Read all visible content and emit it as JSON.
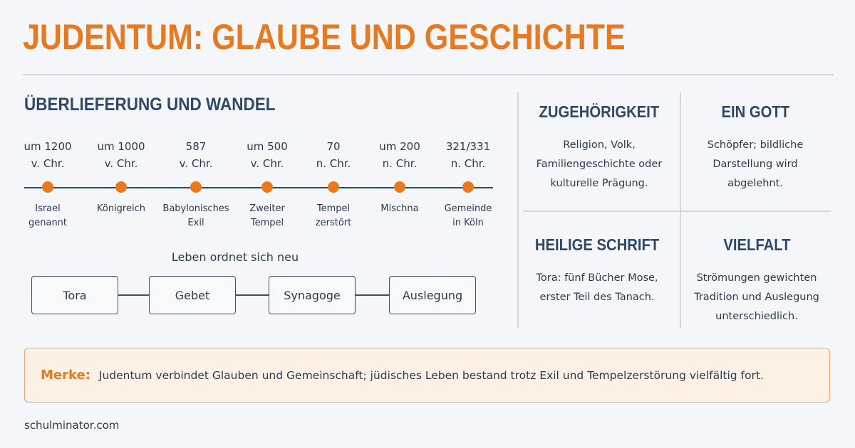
{
  "title": "JUDENTUM: GLAUBE UND GESCHICHTE",
  "timeline": {
    "heading": "ÜBERLIEFERUNG UND WANDEL",
    "events": [
      {
        "date": "um 1200\nv. Chr.",
        "label": "Israel\ngenannt"
      },
      {
        "date": "um 1000\nv. Chr.",
        "label": "Königreich"
      },
      {
        "date": "587\nv. Chr.",
        "label": "Babylonisches\nExil"
      },
      {
        "date": "um 500\nv. Chr.",
        "label": "Zweiter\nTempel"
      },
      {
        "date": "70\nn. Chr.",
        "label": "Tempel\nzerstört"
      },
      {
        "date": "um 200\nn. Chr.",
        "label": "Mischna"
      },
      {
        "date": "321/331\nn. Chr.",
        "label": "Gemeinde\nin Köln"
      }
    ],
    "accent_color": "#e8791f",
    "line_color": "#2f4868"
  },
  "flow": {
    "heading": "Leben ordnet sich neu",
    "steps": [
      "Tora",
      "Gebet",
      "Synagoge",
      "Auslegung"
    ]
  },
  "cards": [
    {
      "title": "ZUGEHÖRIGKEIT",
      "text": "Religion, Volk, Familiengeschichte oder kulturelle Prägung."
    },
    {
      "title": "EIN GOTT",
      "text": "Schöpfer; bildliche Darstellung wird abgelehnt."
    },
    {
      "title": "HEILIGE SCHRIFT",
      "text": "Tora: fünf Bücher Mose, erster Teil des Tanach."
    },
    {
      "title": "VIELFALT",
      "text": "Strömungen gewichten Tradition und Auslegung unterschiedlich."
    }
  ],
  "merke": {
    "label": "Merke:",
    "text": "Judentum verbindet Glauben und Gemeinschaft; jüdisches Leben bestand trotz Exil und Tempelzerstörung vielfältig fort."
  },
  "footer": "schulminator.com"
}
